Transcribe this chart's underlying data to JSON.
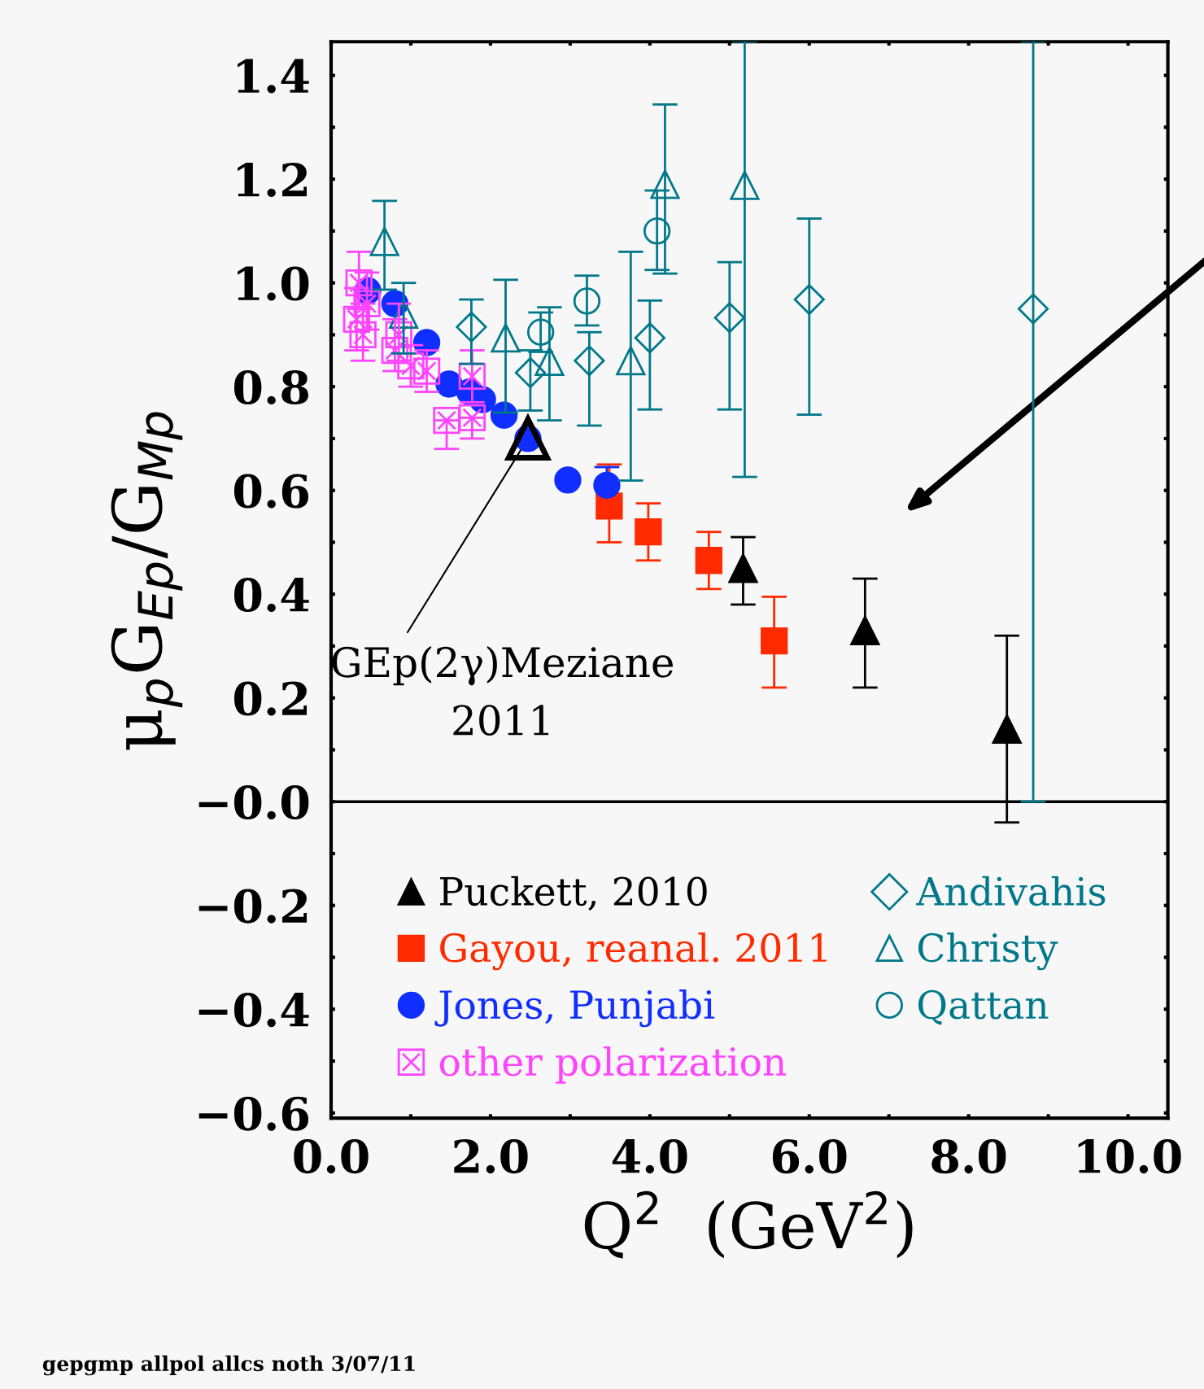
{
  "chart_data": {
    "type": "scatter",
    "xlabel": "Q$^{2}$  (GeV$^{2}$)",
    "ylabel": "μ$_{p}$G$_{Ep}$/G$_{Mp}$",
    "xlim": [
      0,
      10.5
    ],
    "ylim": [
      -0.61,
      1.465
    ],
    "xticks": [
      {
        "value": 0,
        "label": "0.0"
      },
      {
        "value": 1,
        "label": null
      },
      {
        "value": 2,
        "label": "2.0"
      },
      {
        "value": 3,
        "label": null
      },
      {
        "value": 4,
        "label": "4.0"
      },
      {
        "value": 5,
        "label": null
      },
      {
        "value": 6,
        "label": "6.0"
      },
      {
        "value": 7,
        "label": null
      },
      {
        "value": 8,
        "label": "8.0"
      },
      {
        "value": 9,
        "label": null
      },
      {
        "value": 10,
        "label": "10.0"
      }
    ],
    "yticks": [
      {
        "value": -0.6,
        "label": "−0.6"
      },
      {
        "value": -0.5,
        "label": null
      },
      {
        "value": -0.4,
        "label": "−0.4"
      },
      {
        "value": -0.3,
        "label": null
      },
      {
        "value": -0.2,
        "label": "−0.2"
      },
      {
        "value": -0.1,
        "label": null
      },
      {
        "value": 0,
        "label": "−0.0"
      },
      {
        "value": 0.1,
        "label": null
      },
      {
        "value": 0.2,
        "label": "0.2"
      },
      {
        "value": 0.3,
        "label": null
      },
      {
        "value": 0.4,
        "label": "0.4"
      },
      {
        "value": 0.5,
        "label": null
      },
      {
        "value": 0.6,
        "label": "0.6"
      },
      {
        "value": 0.7,
        "label": null
      },
      {
        "value": 0.8,
        "label": "0.8"
      },
      {
        "value": 0.9,
        "label": null
      },
      {
        "value": 1.0,
        "label": "1.0"
      },
      {
        "value": 1.1,
        "label": null
      },
      {
        "value": 1.2,
        "label": "1.2"
      },
      {
        "value": 1.3,
        "label": null
      },
      {
        "value": 1.4,
        "label": "1.4"
      }
    ],
    "grid": false,
    "legend": "bottom",
    "ref_lines": [
      {
        "axis": "y",
        "value": 0,
        "label": null,
        "color": "#000000"
      }
    ],
    "annotations": [
      {
        "text": "GEp(2γ)Meziane\n2011",
        "x": 2.47,
        "y": 0.7
      },
      "gepgmp allpol allcs noth 3/07/11"
    ],
    "series": [
      {
        "name": "Puckett, 2010",
        "color": "#000000",
        "marker": "triangle",
        "x": [
          5.17,
          6.7,
          8.48
        ],
        "values": [
          0.45,
          0.33,
          0.14
        ],
        "errors": [
          [
            0.38,
            0.51
          ],
          [
            0.22,
            0.43
          ],
          [
            -0.04,
            0.32
          ]
        ]
      },
      {
        "name": "Gayou, reanal. 2011",
        "color": "#ff2a00",
        "marker": "square",
        "x": [
          3.49,
          3.98,
          4.74,
          5.56
        ],
        "values": [
          0.57,
          0.52,
          0.465,
          0.31
        ],
        "errors": [
          [
            0.5,
            0.65
          ],
          [
            0.465,
            0.575
          ],
          [
            0.41,
            0.52
          ],
          [
            0.22,
            0.395
          ]
        ]
      },
      {
        "name": "Jones, Punjabi",
        "color": "#0f2eff",
        "marker": "circle",
        "x": [
          0.46,
          0.8,
          1.2,
          1.48,
          1.74,
          1.9,
          2.17,
          2.47,
          2.97,
          3.46
        ],
        "values": [
          0.985,
          0.96,
          0.885,
          0.805,
          0.79,
          0.775,
          0.745,
          0.7,
          0.62,
          0.61
        ],
        "errors": [
          null,
          null,
          null,
          null,
          null,
          null,
          null,
          null,
          null,
          [
            0.61,
            0.645
          ]
        ]
      },
      {
        "name": "other polarization",
        "color": "#ff44ff",
        "marker": "square",
        "x": [
          0.35,
          0.32,
          0.4,
          0.45,
          0.85,
          0.8,
          1.0,
          1.2,
          1.45,
          1.77,
          1.77
        ],
        "values": [
          1.0,
          0.93,
          0.9,
          0.96,
          0.9,
          0.87,
          0.84,
          0.83,
          0.735,
          0.82,
          0.74
        ],
        "errors": [
          [
            0.95,
            1.06
          ],
          [
            0.87,
            0.99
          ],
          [
            0.85,
            0.96
          ],
          [
            0.91,
            1.02
          ],
          [
            0.85,
            0.96
          ],
          [
            0.83,
            0.93
          ],
          [
            0.8,
            0.88
          ],
          [
            0.79,
            0.87
          ],
          [
            0.68,
            0.735
          ],
          [
            0.77,
            0.87
          ],
          [
            0.7,
            0.74
          ]
        ]
      },
      {
        "name": "Andivahis",
        "color": "#00788a",
        "marker": "diamond",
        "x": [
          1.76,
          2.5,
          3.24,
          4.0,
          5.0,
          6.0,
          8.81
        ],
        "values": [
          0.915,
          0.827,
          0.85,
          0.894,
          0.933,
          0.968,
          0.95
        ],
        "errors": [
          [
            0.844,
            0.968
          ],
          [
            0.754,
            0.87
          ],
          [
            0.725,
            0.905
          ],
          [
            0.756,
            0.966
          ],
          [
            0.756,
            1.04
          ],
          [
            0.746,
            1.124
          ],
          [
            0,
            1.465
          ]
        ]
      },
      {
        "name": "Christy",
        "color": "#00788a",
        "marker": "triangle",
        "x": [
          0.67,
          0.91,
          2.19,
          2.74,
          3.76,
          4.19,
          5.19
        ],
        "values": [
          1.08,
          0.94,
          0.894,
          0.849,
          0.85,
          1.19,
          1.188
        ],
        "errors": [
          [
            0.987,
            1.158
          ],
          [
            0.864,
            1.0
          ],
          [
            0.75,
            1.006
          ],
          [
            0.735,
            0.953
          ],
          [
            0.619,
            1.06
          ],
          [
            1.018,
            1.344
          ],
          [
            0.626,
            1.465
          ]
        ]
      },
      {
        "name": "Qattan",
        "color": "#00788a",
        "marker": "circle",
        "x": [
          2.63,
          3.21,
          4.09
        ],
        "values": [
          0.905,
          0.965,
          1.1
        ],
        "errors": [
          [
            0.867,
            0.943
          ],
          [
            0.918,
            1.014
          ],
          [
            1.025,
            1.178
          ]
        ]
      },
      {
        "color": "#000000",
        "marker": "triangle",
        "x": [
          2.47
        ],
        "values": [
          0.7
        ],
        "errors": [
          null
        ]
      }
    ]
  }
}
